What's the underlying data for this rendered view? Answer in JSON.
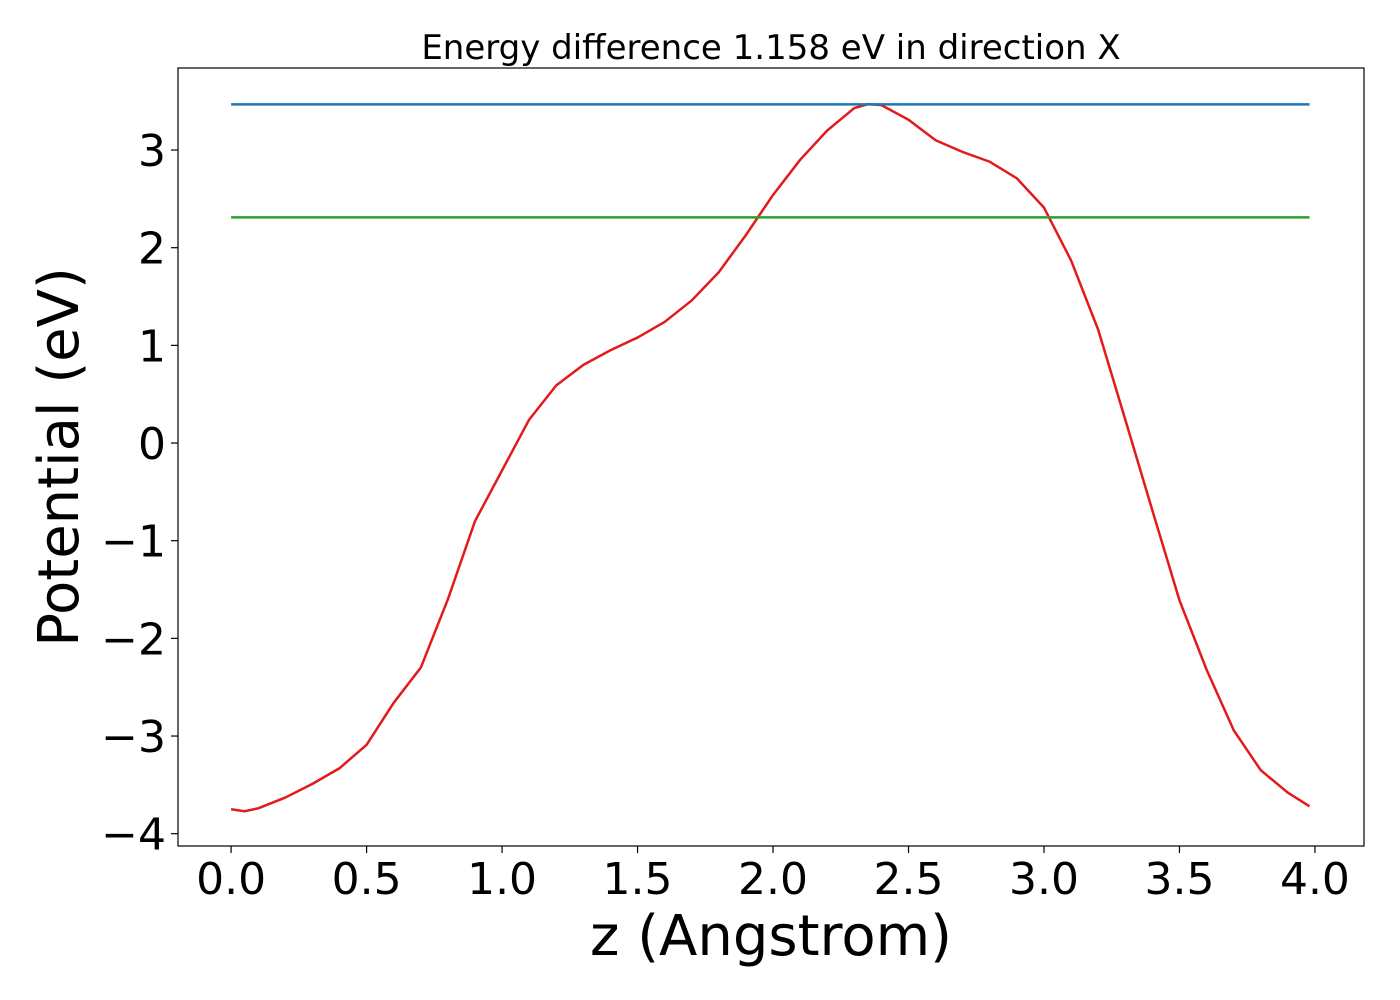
{
  "chart_data": {
    "type": "line",
    "title": "Energy difference 1.158 eV in direction X",
    "x_label": "z (Angstrom)",
    "y_label": "Potential (eV)",
    "xlim": [
      -0.196,
      4.181
    ],
    "ylim": [
      -4.126,
      3.84
    ],
    "xticks": [
      {
        "value": 0,
        "label": "0.0"
      },
      0.5,
      {
        "value": 1,
        "label": "1.0"
      },
      1.5,
      {
        "value": 2,
        "label": "2.0"
      },
      2.5,
      {
        "value": 3,
        "label": "3.0"
      },
      3.5,
      {
        "value": 4,
        "label": "4.0"
      }
    ],
    "yticks": [
      {
        "value": -4,
        "label": "−4"
      },
      {
        "value": -3,
        "label": "−3"
      },
      {
        "value": -2,
        "label": "−2"
      },
      {
        "value": -1,
        "label": "−1"
      },
      0,
      1,
      2,
      3
    ],
    "grid": false,
    "series": [
      {
        "color": "#e31a1c",
        "x": [
          0,
          0.05,
          0.1,
          0.2,
          0.3,
          0.4,
          0.5,
          0.6,
          0.7,
          0.8,
          0.9,
          1.0,
          1.1,
          1.2,
          1.3,
          1.4,
          1.5,
          1.6,
          1.7,
          1.8,
          1.9,
          2.0,
          2.1,
          2.2,
          2.3,
          2.35,
          2.4,
          2.5,
          2.6,
          2.7,
          2.8,
          2.9,
          3.0,
          3.1,
          3.2,
          3.3,
          3.4,
          3.5,
          3.6,
          3.7,
          3.8,
          3.9,
          3.98
        ],
        "values": [
          -3.75,
          -3.77,
          -3.74,
          -3.63,
          -3.49,
          -3.33,
          -3.09,
          -2.66,
          -2.3,
          -1.6,
          -0.8,
          -0.28,
          0.24,
          0.59,
          0.8,
          0.95,
          1.08,
          1.24,
          1.46,
          1.75,
          2.13,
          2.54,
          2.9,
          3.2,
          3.43,
          3.47,
          3.46,
          3.31,
          3.1,
          2.98,
          2.88,
          2.71,
          2.41,
          1.87,
          1.16,
          0.24,
          -0.69,
          -1.61,
          -2.32,
          -2.94,
          -3.35,
          -3.58,
          -3.72
        ]
      },
      {
        "color": "#1f77b4",
        "x": [
          0,
          3.98
        ],
        "values": [
          3.468,
          3.468
        ]
      },
      {
        "color": "#2ca02c",
        "x": [
          0,
          3.98
        ],
        "values": [
          2.31,
          2.31
        ]
      }
    ]
  }
}
